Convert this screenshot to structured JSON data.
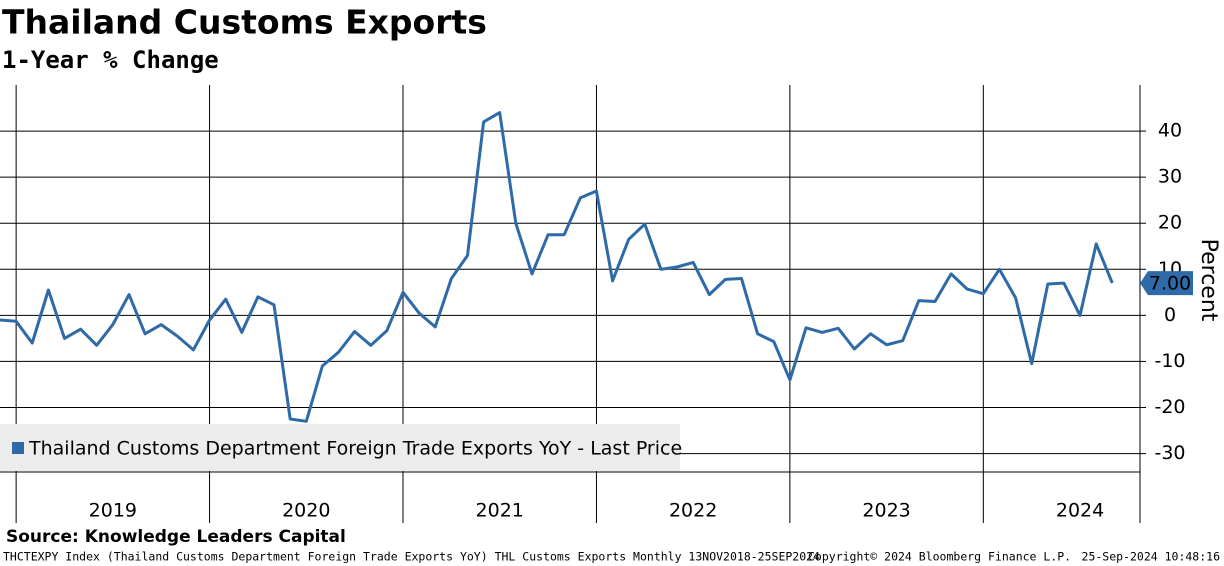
{
  "chart_data": {
    "type": "line",
    "title": "Thailand Customs Exports",
    "subtitle": "1-Year % Change",
    "y_axis_label": "Percent",
    "x_labels": [
      "2019",
      "2020",
      "2021",
      "2022",
      "2023",
      "2024"
    ],
    "series": [
      {
        "name": "Thailand Customs Department Foreign Trade Exports YoY - Last Price",
        "color": "#2e6aa8",
        "values": [
          -1,
          -1.3,
          -6,
          5.5,
          -5,
          -3,
          -6.5,
          -2,
          4.5,
          -4,
          -2,
          -4.5,
          -7.5,
          -1,
          3.5,
          -3.7,
          4,
          2.3,
          -22.5,
          -23,
          -11,
          -8,
          -3.5,
          -6.5,
          -3.3,
          5,
          0.5,
          -2.5,
          8,
          13,
          42,
          44,
          20,
          9,
          17.5,
          17.5,
          25.5,
          27,
          7.5,
          16.5,
          19.8,
          10,
          10.5,
          11.5,
          4.5,
          7.8,
          8,
          -4,
          -5.7,
          -14,
          -2.7,
          -3.7,
          -2.8,
          -7.3,
          -4,
          -6.4,
          -5.5,
          3.2,
          3,
          9,
          5.7,
          4.7,
          10,
          3.8,
          -10.5,
          6.8,
          7,
          0,
          15.5,
          7
        ],
        "last_value_label": "7.00"
      }
    ],
    "ylim": [
      -34,
      50
    ],
    "yticks": [
      -30,
      -20,
      -10,
      0,
      10,
      20,
      30,
      40
    ],
    "grid": true,
    "source": "Source: Knowledge Leaders Capital",
    "footer_left": "THCTEXPY Index (Thailand Customs Department Foreign Trade Exports YoY) THL Customs Exports  Monthly 13NOV2018-25SEP2024",
    "footer_mid": "Copyright© 2024 Bloomberg Finance L.P.",
    "footer_right": "25-Sep-2024 10:48:16"
  }
}
